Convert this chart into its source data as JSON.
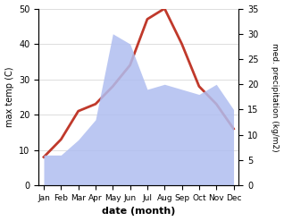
{
  "months": [
    "Jan",
    "Feb",
    "Mar",
    "Apr",
    "May",
    "Jun",
    "Jul",
    "Aug",
    "Sep",
    "Oct",
    "Nov",
    "Dec"
  ],
  "temp": [
    8,
    13,
    21,
    23,
    28,
    34,
    47,
    50,
    40,
    28,
    23,
    16
  ],
  "precip": [
    6,
    6,
    9,
    13,
    30,
    28,
    19,
    20,
    19,
    18,
    20,
    15
  ],
  "temp_color": "#c0392b",
  "precip_fill_color": "#b0bef0",
  "temp_ylim": [
    0,
    50
  ],
  "precip_ylim": [
    0,
    35
  ],
  "temp_yticks": [
    0,
    10,
    20,
    30,
    40,
    50
  ],
  "precip_yticks": [
    0,
    5,
    10,
    15,
    20,
    25,
    30,
    35
  ],
  "xlabel": "date (month)",
  "ylabel_left": "max temp (C)",
  "ylabel_right": "med. precipitation (kg/m2)",
  "bg_color": "#ffffff",
  "grid_color": "#d0d0d0"
}
